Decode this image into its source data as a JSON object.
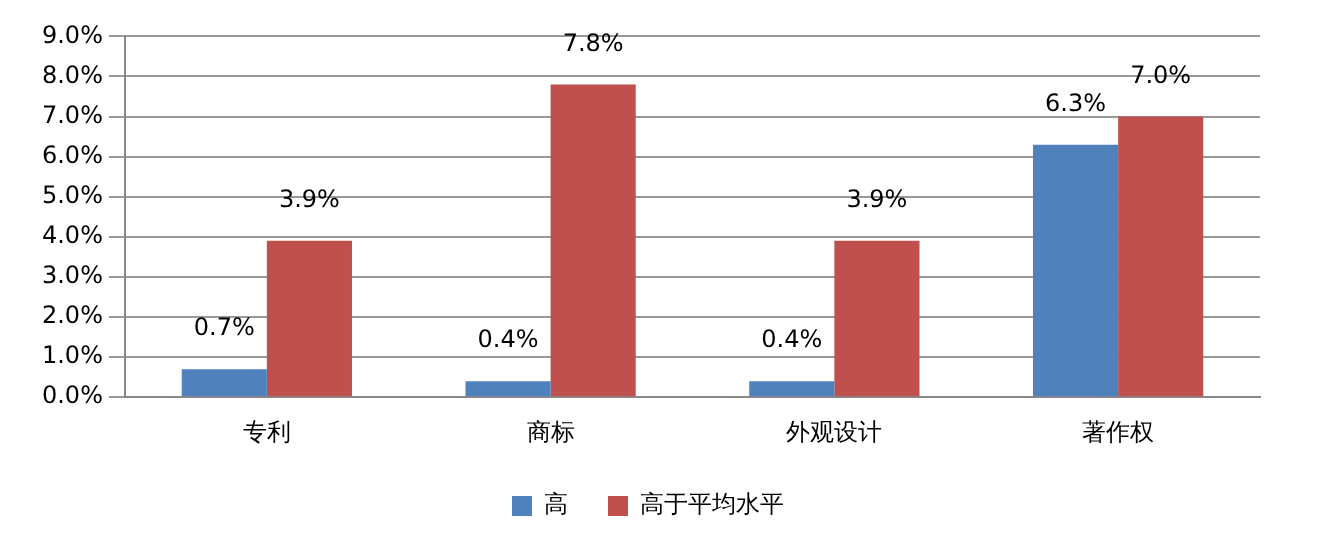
{
  "chart_data": {
    "type": "bar",
    "categories": [
      "专利",
      "商标",
      "外观设计",
      "著作权"
    ],
    "series": [
      {
        "name": "高",
        "color": "#4f81bd",
        "values": [
          0.7,
          0.4,
          0.4,
          6.3
        ],
        "value_labels": [
          "0.7%",
          "0.4%",
          "0.4%",
          "6.3%"
        ]
      },
      {
        "name": "高于平均水平",
        "color": "#c0504d",
        "values": [
          3.9,
          7.8,
          3.9,
          7.0
        ],
        "value_labels": [
          "3.9%",
          "7.8%",
          "3.9%",
          "7.0%"
        ]
      }
    ],
    "ylim": [
      0,
      9
    ],
    "yticks": [
      {
        "value": 0,
        "label": "0.0%"
      },
      {
        "value": 1,
        "label": "1.0%"
      },
      {
        "value": 2,
        "label": "2.0%"
      },
      {
        "value": 3,
        "label": "3.0%"
      },
      {
        "value": 4,
        "label": "4.0%"
      },
      {
        "value": 5,
        "label": "5.0%"
      },
      {
        "value": 6,
        "label": "6.0%"
      },
      {
        "value": 7,
        "label": "7.0%"
      },
      {
        "value": 8,
        "label": "8.0%"
      },
      {
        "value": 9,
        "label": "9.0%"
      }
    ],
    "grid": "y",
    "legend": "bottom"
  }
}
